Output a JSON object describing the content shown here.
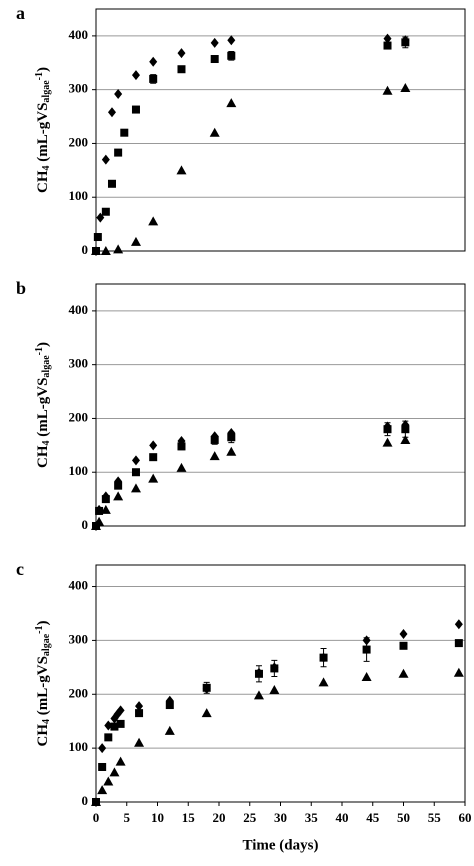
{
  "chart_data": [
    {
      "type": "scatter",
      "panel_label": "a",
      "ylabel": [
        {
          "text": "CH"
        },
        {
          "text": "4",
          "shift": "sub"
        },
        {
          "text": " (mL-gVS"
        },
        {
          "text": "algae",
          "shift": "sub"
        },
        {
          "text": "-1",
          "shift": "sup"
        },
        {
          "text": ")"
        }
      ],
      "xlim": [
        0,
        60
      ],
      "ylim": [
        0,
        450
      ],
      "yticks": [
        0,
        100,
        200,
        300,
        400
      ],
      "grid": true,
      "series": [
        {
          "marker": "diamond",
          "color": "#000000",
          "x": [
            0,
            0.7,
            1.6,
            2.6,
            3.6,
            6.5,
            9.3,
            13.9,
            19.3,
            22,
            47.4,
            50.3
          ],
          "values": [
            0,
            62,
            170,
            258,
            292,
            327,
            352,
            368,
            387,
            392,
            395,
            392
          ]
        },
        {
          "marker": "square",
          "color": "#000000",
          "x": [
            0,
            0.3,
            1.6,
            2.6,
            3.6,
            4.6,
            6.5,
            9.3,
            13.9,
            19.3,
            22,
            47.4,
            50.3
          ],
          "values": [
            0,
            26,
            73,
            125,
            183,
            220,
            263,
            320,
            338,
            357,
            363,
            382,
            388
          ],
          "errors": [
            0,
            0,
            0,
            0,
            0,
            0,
            6,
            8,
            0,
            0,
            8,
            0,
            10
          ]
        },
        {
          "marker": "triangle",
          "color": "#000000",
          "x": [
            0,
            1.6,
            3.6,
            6.5,
            9.3,
            13.9,
            19.3,
            22,
            47.4,
            50.3
          ],
          "values": [
            0,
            0,
            3,
            17,
            55,
            150,
            220,
            275,
            298,
            303
          ]
        }
      ]
    },
    {
      "type": "scatter",
      "panel_label": "b",
      "ylabel": [
        {
          "text": "CH"
        },
        {
          "text": "4",
          "shift": "sub"
        },
        {
          "text": " (mL-gVS"
        },
        {
          "text": "algae",
          "shift": "sub"
        },
        {
          "text": "-1",
          "shift": "sup"
        },
        {
          "text": ")"
        }
      ],
      "xlim": [
        0,
        60
      ],
      "ylim": [
        0,
        450
      ],
      "yticks": [
        0,
        100,
        200,
        300,
        400
      ],
      "grid": true,
      "series": [
        {
          "marker": "diamond",
          "color": "#000000",
          "x": [
            0,
            0.5,
            1.6,
            3.6,
            6.5,
            9.3,
            13.9,
            19.3,
            22,
            47.4,
            50.3
          ],
          "values": [
            0,
            30,
            55,
            83,
            122,
            150,
            158,
            167,
            173,
            185,
            188
          ]
        },
        {
          "marker": "square",
          "color": "#000000",
          "x": [
            0,
            0.5,
            1.6,
            3.6,
            6.5,
            9.3,
            13.9,
            19.3,
            22,
            47.4,
            50.3
          ],
          "values": [
            0,
            28,
            50,
            75,
            100,
            128,
            148,
            160,
            165,
            180,
            180
          ],
          "errors": [
            0,
            0,
            0,
            0,
            0,
            0,
            6,
            8,
            10,
            12,
            15
          ]
        },
        {
          "marker": "triangle",
          "color": "#000000",
          "x": [
            0,
            0.5,
            1.6,
            3.6,
            6.5,
            9.3,
            13.9,
            19.3,
            22,
            47.4,
            50.3
          ],
          "values": [
            0,
            8,
            30,
            55,
            70,
            88,
            108,
            130,
            138,
            155,
            160
          ]
        }
      ]
    },
    {
      "type": "scatter",
      "panel_label": "c",
      "ylabel": [
        {
          "text": "CH"
        },
        {
          "text": "4",
          "shift": "sub"
        },
        {
          "text": " (mL-gVS"
        },
        {
          "text": "algae",
          "shift": "sub"
        },
        {
          "text": "-1",
          "shift": "sup"
        },
        {
          "text": ")"
        }
      ],
      "xlabel": "Time (days)",
      "xlim": [
        0,
        60
      ],
      "xticks": [
        0,
        5,
        10,
        15,
        20,
        25,
        30,
        35,
        40,
        45,
        50,
        55,
        60
      ],
      "ylim": [
        0,
        440
      ],
      "yticks": [
        0,
        100,
        200,
        300,
        400
      ],
      "grid": true,
      "series": [
        {
          "marker": "diamond",
          "color": "#000000",
          "x": [
            0,
            1,
            2,
            3,
            3.5,
            4,
            7,
            12,
            18,
            26.5,
            29,
            37,
            44,
            50,
            59
          ],
          "values": [
            0,
            100,
            142,
            155,
            163,
            170,
            178,
            188,
            210,
            240,
            250,
            268,
            300,
            312,
            330
          ]
        },
        {
          "marker": "square",
          "color": "#000000",
          "x": [
            0,
            1,
            2,
            3,
            4,
            7,
            12,
            18,
            26.5,
            29,
            37,
            44,
            50,
            59
          ],
          "values": [
            0,
            65,
            120,
            140,
            145,
            165,
            180,
            212,
            238,
            248,
            268,
            283,
            290,
            295
          ],
          "errors": [
            0,
            0,
            0,
            0,
            0,
            0,
            0,
            10,
            15,
            15,
            17,
            22,
            0,
            0
          ]
        },
        {
          "marker": "triangle",
          "color": "#000000",
          "x": [
            0,
            1,
            2,
            3,
            4,
            7,
            12,
            18,
            26.5,
            29,
            37,
            44,
            50,
            59
          ],
          "values": [
            0,
            22,
            38,
            55,
            75,
            110,
            132,
            165,
            198,
            208,
            222,
            232,
            238,
            240
          ]
        }
      ]
    }
  ]
}
